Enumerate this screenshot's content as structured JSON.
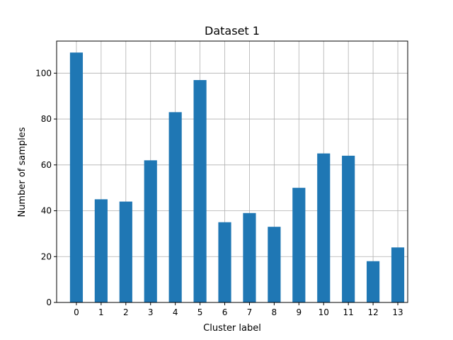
{
  "chart_data": {
    "type": "bar",
    "title": "Dataset 1",
    "xlabel": "Cluster label",
    "ylabel": "Number of samples",
    "categories": [
      "0",
      "1",
      "2",
      "3",
      "4",
      "5",
      "6",
      "7",
      "8",
      "9",
      "10",
      "11",
      "12",
      "13"
    ],
    "values": [
      109,
      45,
      44,
      62,
      83,
      97,
      35,
      39,
      33,
      50,
      65,
      64,
      18,
      24
    ],
    "ylim": [
      0,
      114
    ],
    "yticks": [
      0,
      20,
      40,
      60,
      80,
      100
    ],
    "grid": true,
    "bar_color": "#1f77b4"
  }
}
